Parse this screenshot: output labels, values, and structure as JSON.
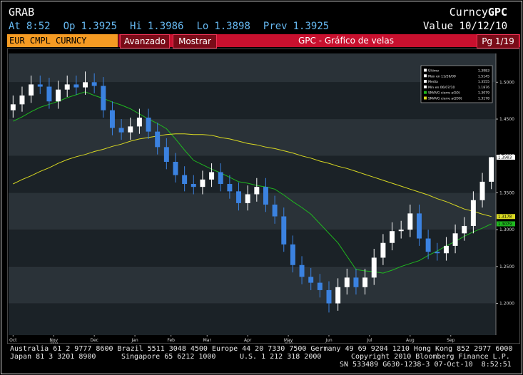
{
  "header": {
    "function": "GRAB",
    "security_type": "Curncy",
    "screen": "GPC",
    "quote": [
      {
        "label": "At",
        "value": "8:52"
      },
      {
        "label": "Op",
        "value": "1.3925"
      },
      {
        "label": "Hi",
        "value": "1.3986"
      },
      {
        "label": "Lo",
        "value": "1.3898"
      },
      {
        "label": "Prev",
        "value": "1.3925"
      }
    ],
    "value_label": "Value",
    "value_date": "10/12/10"
  },
  "toolbar": {
    "security": "EUR CMPL CURNCY",
    "buttons": [
      "Avanzado",
      "Mostrar"
    ],
    "title": "GPC - Gráfico de velas",
    "page": "Pg 1/19"
  },
  "chart_data": {
    "type": "candlestick",
    "up_color": "#ffffff",
    "down_color": "#3b82e0",
    "open": [
      1.462,
      1.47,
      1.482,
      1.497,
      1.494,
      1.474,
      1.49,
      1.497,
      1.493,
      1.5,
      1.495,
      1.462,
      1.438,
      1.432,
      1.44,
      1.452,
      1.433,
      1.412,
      1.392,
      1.374,
      1.362,
      1.358,
      1.368,
      1.378,
      1.362,
      1.352,
      1.336,
      1.348,
      1.358,
      1.334,
      1.318,
      1.28,
      1.252,
      1.236,
      1.228,
      1.218,
      1.2,
      1.222,
      1.235,
      1.222,
      1.235,
      1.262,
      1.282,
      1.298,
      1.3,
      1.322,
      1.288,
      1.27,
      1.268,
      1.278,
      1.295,
      1.305,
      1.34,
      1.365
    ],
    "high": [
      1.482,
      1.494,
      1.509,
      1.509,
      1.506,
      1.502,
      1.509,
      1.509,
      1.5145,
      1.512,
      1.507,
      1.474,
      1.45,
      1.452,
      1.464,
      1.464,
      1.445,
      1.424,
      1.404,
      1.386,
      1.374,
      1.38,
      1.39,
      1.39,
      1.374,
      1.364,
      1.36,
      1.37,
      1.37,
      1.346,
      1.33,
      1.292,
      1.264,
      1.248,
      1.24,
      1.23,
      1.234,
      1.247,
      1.247,
      1.247,
      1.274,
      1.294,
      1.31,
      1.312,
      1.334,
      1.334,
      1.3,
      1.282,
      1.29,
      1.307,
      1.317,
      1.352,
      1.377,
      1.3986
    ],
    "low": [
      1.452,
      1.46,
      1.472,
      1.484,
      1.464,
      1.464,
      1.48,
      1.483,
      1.483,
      1.485,
      1.452,
      1.428,
      1.422,
      1.422,
      1.43,
      1.423,
      1.402,
      1.382,
      1.364,
      1.352,
      1.348,
      1.348,
      1.358,
      1.352,
      1.342,
      1.326,
      1.326,
      1.338,
      1.324,
      1.308,
      1.27,
      1.242,
      1.226,
      1.218,
      1.208,
      1.1876,
      1.19,
      1.212,
      1.212,
      1.212,
      1.225,
      1.252,
      1.272,
      1.288,
      1.29,
      1.278,
      1.26,
      1.258,
      1.258,
      1.268,
      1.285,
      1.295,
      1.33,
      1.355
    ],
    "close": [
      1.47,
      1.482,
      1.497,
      1.494,
      1.474,
      1.49,
      1.497,
      1.493,
      1.5,
      1.495,
      1.462,
      1.438,
      1.432,
      1.44,
      1.452,
      1.433,
      1.412,
      1.392,
      1.374,
      1.362,
      1.358,
      1.368,
      1.378,
      1.362,
      1.352,
      1.336,
      1.348,
      1.358,
      1.334,
      1.318,
      1.28,
      1.252,
      1.236,
      1.228,
      1.218,
      1.2,
      1.222,
      1.235,
      1.222,
      1.235,
      1.262,
      1.282,
      1.298,
      1.3,
      1.322,
      1.288,
      1.27,
      1.268,
      1.278,
      1.295,
      1.305,
      1.34,
      1.365,
      1.3983
    ],
    "series": [
      {
        "color": "#1fb81f",
        "values": [
          1.447,
          1.453,
          1.46,
          1.466,
          1.47,
          1.474,
          1.479,
          1.483,
          1.487,
          1.482,
          1.478,
          1.473,
          1.469,
          1.464,
          1.457,
          1.45,
          1.444,
          1.437,
          1.423,
          1.408,
          1.394,
          1.388,
          1.382,
          1.377,
          1.371,
          1.365,
          1.363,
          1.36,
          1.358,
          1.355,
          1.347,
          1.338,
          1.33,
          1.321,
          1.308,
          1.295,
          1.282,
          1.264,
          1.246,
          1.244,
          1.243,
          1.241,
          1.245,
          1.25,
          1.254,
          1.258,
          1.265,
          1.271,
          1.278,
          1.284,
          1.291,
          1.297,
          1.302,
          1.3079
        ]
      },
      {
        "color": "#d8d822",
        "values": [
          1.362,
          1.368,
          1.373,
          1.379,
          1.384,
          1.39,
          1.395,
          1.399,
          1.402,
          1.406,
          1.409,
          1.413,
          1.416,
          1.42,
          1.423,
          1.425,
          1.427,
          1.429,
          1.43,
          1.43,
          1.429,
          1.429,
          1.428,
          1.425,
          1.423,
          1.42,
          1.417,
          1.415,
          1.412,
          1.41,
          1.407,
          1.404,
          1.4,
          1.397,
          1.393,
          1.39,
          1.386,
          1.383,
          1.379,
          1.375,
          1.371,
          1.367,
          1.363,
          1.359,
          1.355,
          1.351,
          1.347,
          1.342,
          1.338,
          1.333,
          1.328,
          1.325,
          1.321,
          1.3178
        ]
      }
    ],
    "legend": [
      {
        "label": "Último",
        "value": 1.3983,
        "color": "#ffffff"
      },
      {
        "label": "Máx en 11/26/09",
        "value": 1.5145,
        "color": "#ffffff"
      },
      {
        "label": "Media",
        "value": 1.3555,
        "color": "#ffffff"
      },
      {
        "label": "Mín en 06/07/10",
        "value": 1.1876,
        "color": "#ffffff"
      },
      {
        "label": "SMAVG cierre a(50)",
        "value": 1.3079,
        "color": "#1fb81f"
      },
      {
        "label": "SMAVG cierre a(200)",
        "value": 1.3178,
        "color": "#d8d822"
      }
    ],
    "xlim": [
      -0.5,
      53.5
    ],
    "xticks": [
      {
        "value": 0,
        "label": "Oct"
      },
      {
        "value": 4.5,
        "label": "Nov"
      },
      {
        "value": 9,
        "label": "Dec"
      },
      {
        "value": 13.5,
        "label": "Jan"
      },
      {
        "value": 17.5,
        "label": "Feb"
      },
      {
        "value": 21.5,
        "label": "Mar"
      },
      {
        "value": 26,
        "label": "Apr"
      },
      {
        "value": 30.5,
        "label": "May"
      },
      {
        "value": 35,
        "label": "Jun"
      },
      {
        "value": 39.5,
        "label": "Jul"
      },
      {
        "value": 44,
        "label": "Aug"
      },
      {
        "value": 48.5,
        "label": "Sep"
      }
    ],
    "year_labels": [
      {
        "value": 4.5,
        "label": "2009"
      },
      {
        "value": 30.5,
        "label": "2010"
      }
    ],
    "ylim": [
      1.157,
      1.539
    ],
    "yticks": [
      {
        "value": 1.2,
        "label": "1.2000"
      },
      {
        "value": 1.25,
        "label": "1.2500"
      },
      {
        "value": 1.3,
        "label": "1.3000"
      },
      {
        "value": 1.35,
        "label": "1.3500"
      },
      {
        "value": 1.4,
        "label": "1.4000"
      },
      {
        "value": 1.45,
        "label": "1.4500"
      },
      {
        "value": 1.5,
        "label": "1.5000"
      }
    ]
  },
  "footer": {
    "line1": "Australia 61 2 9777 8600 Brazil 5511 3048 4500 Europe 44 20 7330 7500 Germany 49 69 9204 1210 Hong Kong 852 2977 6000",
    "line2": [
      "Japan 81 3 3201 8900",
      "Singapore 65 6212 1000",
      "U.S. 1 212 318 2000",
      "Copyright 2010 Bloomberg Finance L.P."
    ],
    "line3": "SN 533489 G630-1238-3 07-Oct-10  8:52:51"
  }
}
